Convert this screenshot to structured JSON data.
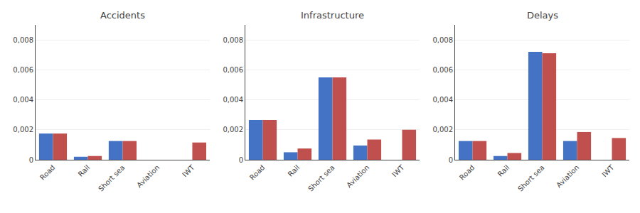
{
  "chart_data": [
    {
      "type": "bar",
      "title": "Accidents",
      "categories": [
        "Road",
        "Rail",
        "Short sea",
        "Aviation",
        "IWT"
      ],
      "series": [
        {
          "color": "#4472C4",
          "values": [
            0.00175,
            0.0002,
            0.00125,
            0.0,
            0.0
          ]
        },
        {
          "color": "#C0504D",
          "values": [
            0.00175,
            0.00025,
            0.00125,
            0.0,
            0.00115
          ]
        }
      ],
      "ylim": [
        0,
        0.009
      ],
      "yticks": [
        0,
        {
          "value": 0.002,
          "label": "0,002"
        },
        {
          "value": 0.004,
          "label": "0,004"
        },
        {
          "value": 0.006,
          "label": "0,006"
        },
        {
          "value": 0.008,
          "label": "0,008"
        }
      ],
      "grid": true
    },
    {
      "type": "bar",
      "title": "Infrastructure",
      "categories": [
        "Road",
        "Rail",
        "Short sea",
        "Aviation",
        "IWT"
      ],
      "series": [
        {
          "color": "#4472C4",
          "values": [
            0.00265,
            0.0005,
            0.0055,
            0.00095,
            0.0
          ]
        },
        {
          "color": "#C0504D",
          "values": [
            0.00265,
            0.00075,
            0.0055,
            0.00135,
            0.002
          ]
        }
      ],
      "ylim": [
        0,
        0.009
      ],
      "yticks": [
        0,
        {
          "value": 0.002,
          "label": "0,002"
        },
        {
          "value": 0.004,
          "label": "0,004"
        },
        {
          "value": 0.006,
          "label": "0,006"
        },
        {
          "value": 0.008,
          "label": "0,008"
        }
      ],
      "grid": true
    },
    {
      "type": "bar",
      "title": "Delays",
      "categories": [
        "Road",
        "Rail",
        "Short sea",
        "Aviation",
        "IWT"
      ],
      "series": [
        {
          "color": "#4472C4",
          "values": [
            0.00125,
            0.00025,
            0.0072,
            0.00125,
            0.0
          ]
        },
        {
          "color": "#C0504D",
          "values": [
            0.00125,
            0.00045,
            0.0071,
            0.00185,
            0.00145
          ]
        }
      ],
      "ylim": [
        0,
        0.009
      ],
      "yticks": [
        0,
        {
          "value": 0.002,
          "label": "0,002"
        },
        {
          "value": 0.004,
          "label": "0,004"
        },
        {
          "value": 0.006,
          "label": "0,006"
        },
        {
          "value": 0.008,
          "label": "0,008"
        }
      ],
      "grid": true
    }
  ]
}
